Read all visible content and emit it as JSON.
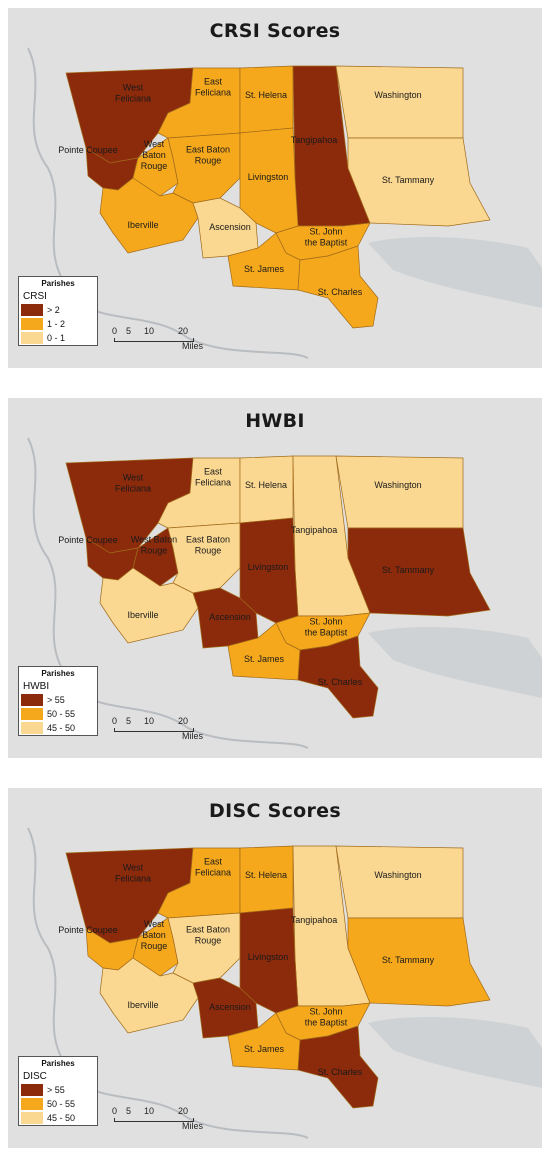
{
  "maps": [
    {
      "title": "CRSI Scores",
      "legend": {
        "heading": "Parishes",
        "variable": "CRSI",
        "classes": [
          {
            "label": "> 2",
            "color": "#8c2a0c"
          },
          {
            "label": "1 - 2",
            "color": "#f6a81c"
          },
          {
            "label": "0 - 1",
            "color": "#fbd891"
          }
        ]
      },
      "parishes": [
        {
          "name": "West Feliciana",
          "lines": [
            "West",
            "Feliciana"
          ],
          "class": 0
        },
        {
          "name": "Pointe Coupee",
          "lines": [
            "Pointe Coupee"
          ],
          "class": 0
        },
        {
          "name": "East Feliciana",
          "lines": [
            "East",
            "Feliciana"
          ],
          "class": 1
        },
        {
          "name": "St. Helena",
          "lines": [
            "St. Helena"
          ],
          "class": 1
        },
        {
          "name": "Tangipahoa",
          "lines": [
            "Tangipahoa"
          ],
          "class": 0
        },
        {
          "name": "Washington",
          "lines": [
            "Washington"
          ],
          "class": 2
        },
        {
          "name": "West Baton Rouge",
          "lines": [
            "West",
            "Baton",
            "Rouge"
          ],
          "class": 1
        },
        {
          "name": "East Baton Rouge",
          "lines": [
            "East Baton",
            "Rouge"
          ],
          "class": 1
        },
        {
          "name": "Livingston",
          "lines": [
            "Livingston"
          ],
          "class": 1
        },
        {
          "name": "St. Tammany",
          "lines": [
            "St. Tammany"
          ],
          "class": 2
        },
        {
          "name": "Iberville",
          "lines": [
            "Iberville"
          ],
          "class": 1
        },
        {
          "name": "Ascension",
          "lines": [
            "Ascension"
          ],
          "class": 2
        },
        {
          "name": "St. John the Baptist",
          "lines": [
            "St. John",
            "the Baptist"
          ],
          "class": 1
        },
        {
          "name": "St. James",
          "lines": [
            "St. James"
          ],
          "class": 1
        },
        {
          "name": "St. Charles",
          "lines": [
            "St. Charles"
          ],
          "class": 1
        }
      ]
    },
    {
      "title": "HWBI",
      "legend": {
        "heading": "Parishes",
        "variable": "HWBI",
        "classes": [
          {
            "label": "> 55",
            "color": "#8c2a0c"
          },
          {
            "label": "50 - 55",
            "color": "#f6a81c"
          },
          {
            "label": "45 - 50",
            "color": "#fbd891"
          }
        ]
      },
      "parishes": [
        {
          "name": "West Feliciana",
          "lines": [
            "West",
            "Feliciana"
          ],
          "class": 0
        },
        {
          "name": "Pointe Coupee",
          "lines": [
            "Pointe Coupee"
          ],
          "class": 0
        },
        {
          "name": "East Feliciana",
          "lines": [
            "East",
            "Feliciana"
          ],
          "class": 2
        },
        {
          "name": "St. Helena",
          "lines": [
            "St. Helena"
          ],
          "class": 2
        },
        {
          "name": "Tangipahoa",
          "lines": [
            "Tangipahoa"
          ],
          "class": 2
        },
        {
          "name": "Washington",
          "lines": [
            "Washington"
          ],
          "class": 2
        },
        {
          "name": "West Baton Rouge",
          "lines": [
            "West Baton",
            "Rouge"
          ],
          "class": 0
        },
        {
          "name": "East Baton Rouge",
          "lines": [
            "East Baton",
            "Rouge"
          ],
          "class": 2
        },
        {
          "name": "Livingston",
          "lines": [
            "Livingston"
          ],
          "class": 0
        },
        {
          "name": "St. Tammany",
          "lines": [
            "St. Tammany"
          ],
          "class": 0
        },
        {
          "name": "Iberville",
          "lines": [
            "Iberville"
          ],
          "class": 2
        },
        {
          "name": "Ascension",
          "lines": [
            "Ascension"
          ],
          "class": 0
        },
        {
          "name": "St. John the Baptist",
          "lines": [
            "St. John",
            "the Baptist"
          ],
          "class": 1
        },
        {
          "name": "St. James",
          "lines": [
            "St. James"
          ],
          "class": 1
        },
        {
          "name": "St. Charles",
          "lines": [
            "St. Charles"
          ],
          "class": 0
        }
      ]
    },
    {
      "title": "DISC Scores",
      "legend": {
        "heading": "Parishes",
        "variable": "DISC",
        "classes": [
          {
            "label": "> 55",
            "color": "#8c2a0c"
          },
          {
            "label": "50 - 55",
            "color": "#f6a81c"
          },
          {
            "label": "45 - 50",
            "color": "#fbd891"
          }
        ]
      },
      "parishes": [
        {
          "name": "West Feliciana",
          "lines": [
            "West",
            "Feliciana"
          ],
          "class": 0
        },
        {
          "name": "Pointe Coupee",
          "lines": [
            "Pointe Coupee"
          ],
          "class": 1
        },
        {
          "name": "East Feliciana",
          "lines": [
            "East",
            "Feliciana"
          ],
          "class": 1
        },
        {
          "name": "St. Helena",
          "lines": [
            "St. Helena"
          ],
          "class": 1
        },
        {
          "name": "Tangipahoa",
          "lines": [
            "Tangipahoa"
          ],
          "class": 2
        },
        {
          "name": "Washington",
          "lines": [
            "Washington"
          ],
          "class": 2
        },
        {
          "name": "West Baton Rouge",
          "lines": [
            "West",
            "Baton",
            "Rouge"
          ],
          "class": 1
        },
        {
          "name": "East Baton Rouge",
          "lines": [
            "East Baton",
            "Rouge"
          ],
          "class": 2
        },
        {
          "name": "Livingston",
          "lines": [
            "Livingston"
          ],
          "class": 0
        },
        {
          "name": "St. Tammany",
          "lines": [
            "St. Tammany"
          ],
          "class": 1
        },
        {
          "name": "Iberville",
          "lines": [
            "Iberville"
          ],
          "class": 2
        },
        {
          "name": "Ascension",
          "lines": [
            "Ascension"
          ],
          "class": 0
        },
        {
          "name": "St. John the Baptist",
          "lines": [
            "St. John",
            "the Baptist"
          ],
          "class": 1
        },
        {
          "name": "St. James",
          "lines": [
            "St. James"
          ],
          "class": 1
        },
        {
          "name": "St. Charles",
          "lines": [
            "St. Charles"
          ],
          "class": 0
        }
      ]
    }
  ],
  "scale": {
    "ticks": [
      "0",
      "5",
      "10",
      "20"
    ],
    "unit": "Miles"
  }
}
